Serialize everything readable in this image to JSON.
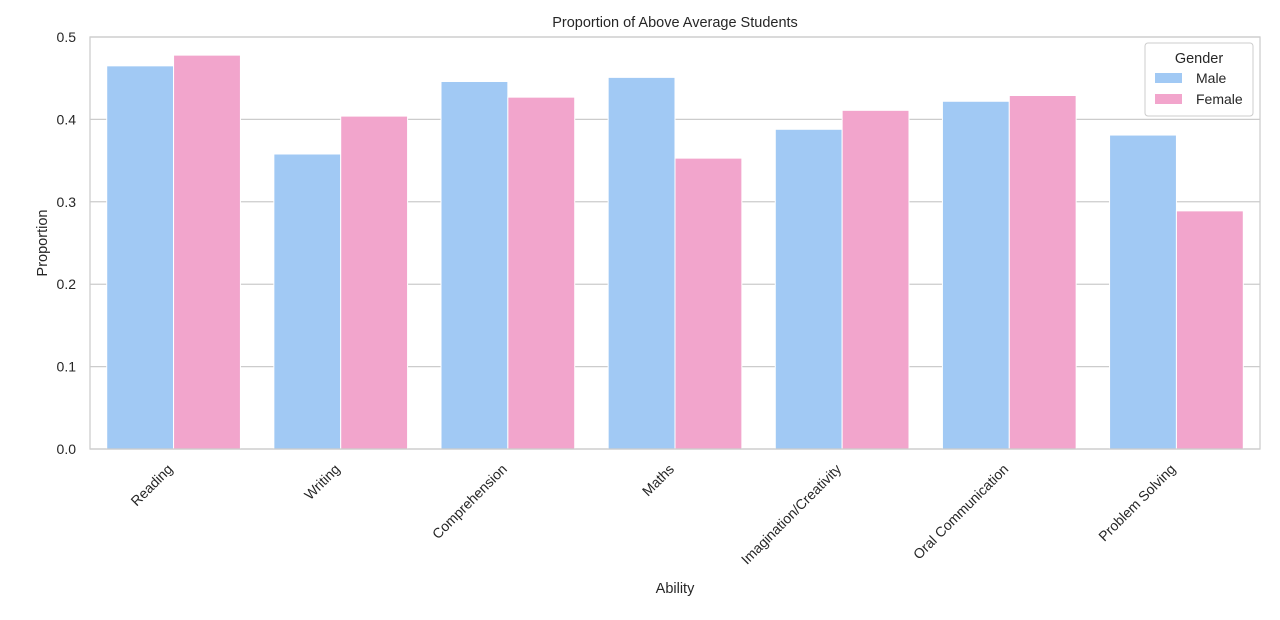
{
  "chart_data": {
    "type": "bar",
    "title": "Proportion of Above Average Students",
    "xlabel": "Ability",
    "ylabel": "Proportion",
    "ylim": [
      0,
      0.5
    ],
    "yticks": [
      "0.0",
      "0.1",
      "0.2",
      "0.3",
      "0.4",
      "0.5"
    ],
    "grid": "horizontal",
    "categories": [
      "Reading",
      "Writing",
      "Comprehension",
      "Maths",
      "Imagination/Creativity",
      "Oral Communication",
      "Problem Solving"
    ],
    "series": [
      {
        "name": "Male",
        "color": "#a1c9f4",
        "values": [
          0.465,
          0.358,
          0.446,
          0.451,
          0.388,
          0.422,
          0.381
        ]
      },
      {
        "name": "Female",
        "color": "#f2a5cc",
        "values": [
          0.478,
          0.404,
          0.427,
          0.353,
          0.411,
          0.429,
          0.289
        ]
      }
    ],
    "legend": {
      "title": "Gender",
      "position": "top-right"
    }
  }
}
